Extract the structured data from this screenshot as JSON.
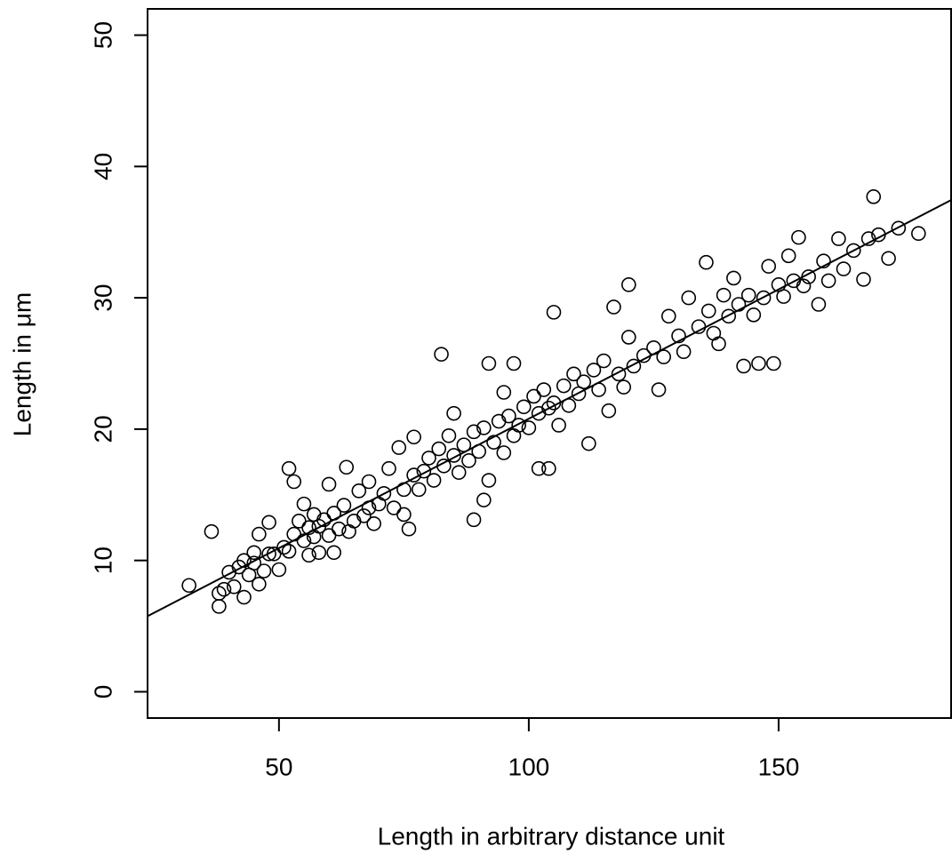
{
  "chart_data": {
    "type": "scatter",
    "xlabel": "Length in arbitrary distance unit",
    "ylabel": "Length in  μm",
    "xlim": [
      23.7,
      184.7
    ],
    "ylim": [
      -2,
      52
    ],
    "xticks": [
      50,
      100,
      150
    ],
    "yticks": [
      0,
      10,
      20,
      30,
      40,
      50
    ],
    "color": "#000000",
    "fit_line": {
      "intercept": 1.09,
      "slope": 0.197
    },
    "x": [
      32,
      36.5,
      38,
      38,
      39,
      40,
      41,
      42,
      43,
      43,
      44,
      45,
      45,
      46,
      46,
      47,
      48,
      48,
      49,
      50,
      51,
      52,
      52,
      53,
      53,
      54,
      55,
      55,
      56,
      56,
      57,
      57,
      58,
      58,
      59,
      60,
      60,
      61,
      61,
      62,
      63,
      63.5,
      64,
      65,
      66,
      67,
      68,
      68,
      69,
      70,
      71,
      72,
      73,
      74,
      75,
      75,
      76,
      77,
      77,
      78,
      79,
      80,
      81,
      82,
      82.5,
      83,
      84,
      85,
      85,
      86,
      87,
      88,
      89,
      89,
      90,
      91,
      91,
      92,
      92,
      93,
      94,
      95,
      95,
      96,
      97,
      97,
      98,
      99,
      100,
      101,
      102,
      102,
      103,
      104,
      104,
      105,
      105,
      106,
      107,
      108,
      109,
      110,
      111,
      112,
      113,
      114,
      115,
      116,
      117,
      118,
      119,
      120,
      120,
      121,
      123,
      125,
      126,
      127,
      128,
      130,
      131,
      132,
      134,
      135.5,
      136,
      137,
      138,
      139,
      140,
      141,
      142,
      143,
      144,
      145,
      146,
      147,
      148,
      149,
      150,
      151,
      152,
      153,
      154,
      155,
      156,
      158,
      159,
      160,
      162,
      163,
      165,
      167,
      168,
      169,
      170,
      172,
      174,
      178
    ],
    "y": [
      8.1,
      12.2,
      6.5,
      7.5,
      7.8,
      9.1,
      8,
      9.5,
      7.2,
      10,
      8.9,
      9.8,
      10.6,
      8.2,
      12,
      9.2,
      10.5,
      12.9,
      10.5,
      9.3,
      11,
      17,
      10.7,
      16,
      12,
      13,
      11.5,
      14.3,
      12.5,
      10.4,
      13.5,
      11.8,
      12.6,
      10.6,
      13.1,
      15.8,
      11.9,
      10.6,
      13.6,
      12.4,
      14.2,
      17.1,
      12.2,
      13,
      15.3,
      13.4,
      14,
      16,
      12.8,
      14.3,
      15.1,
      17,
      14,
      18.6,
      15.4,
      13.5,
      12.4,
      16.5,
      19.4,
      15.4,
      16.8,
      17.8,
      16.1,
      18.5,
      25.7,
      17.2,
      19.5,
      18,
      21.2,
      16.7,
      18.8,
      17.6,
      13.1,
      19.8,
      18.3,
      14.6,
      20.1,
      25,
      16.1,
      19,
      20.6,
      22.8,
      18.2,
      21,
      25,
      19.5,
      20.3,
      21.7,
      20.1,
      22.5,
      17,
      21.2,
      23,
      17,
      21.6,
      28.9,
      22,
      20.3,
      23.3,
      21.8,
      24.2,
      22.7,
      23.6,
      18.9,
      24.5,
      23,
      25.2,
      21.4,
      29.3,
      24.2,
      23.2,
      27,
      31,
      24.8,
      25.6,
      26.2,
      23,
      25.5,
      28.6,
      27.1,
      25.9,
      30,
      27.8,
      32.7,
      29,
      27.3,
      26.5,
      30.2,
      28.6,
      31.5,
      29.5,
      24.8,
      30.2,
      28.7,
      25,
      30,
      32.4,
      25,
      31,
      30.1,
      33.2,
      31.3,
      34.6,
      30.9,
      31.6,
      29.5,
      32.8,
      31.3,
      34.5,
      32.2,
      33.6,
      31.4,
      34.5,
      37.7,
      34.8,
      33,
      35.3,
      34.9
    ]
  }
}
